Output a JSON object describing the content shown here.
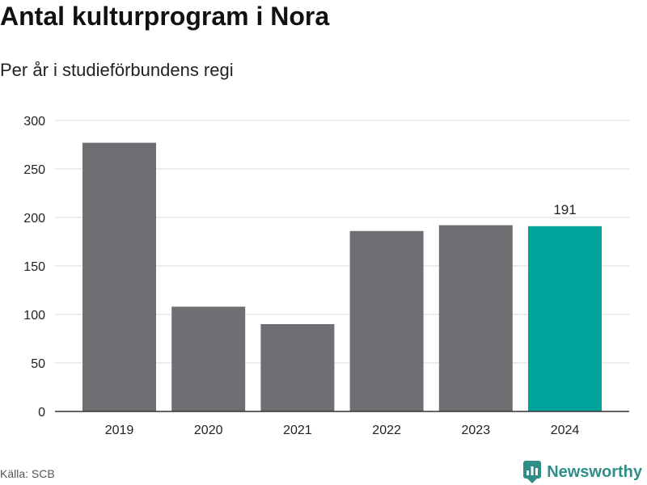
{
  "header": {
    "title": "Antal kulturprogram i Nora",
    "subtitle": "Per år i studieförbundens regi"
  },
  "footer": {
    "source": "Källa: SCB",
    "brand": "Newsworthy",
    "brand_icon": "newsworthy-chart-icon"
  },
  "colors": {
    "bar_default": "#6f6e73",
    "bar_highlight": "#00a39a",
    "grid": "#d9d9d9",
    "axis": "#333333",
    "text": "#222222",
    "brand": "#2f8f87"
  },
  "chart_data": {
    "type": "bar",
    "categories": [
      "2019",
      "2020",
      "2021",
      "2022",
      "2023",
      "2024"
    ],
    "values": [
      277,
      108,
      90,
      186,
      192,
      191
    ],
    "highlight_index": 5,
    "data_labels": [
      {
        "index": 5,
        "text": "191"
      }
    ],
    "y_ticks": [
      0,
      50,
      100,
      150,
      200,
      250,
      300
    ],
    "ylim": [
      0,
      300
    ],
    "grid": true,
    "legend": "none",
    "title": "Antal kulturprogram i Nora",
    "subtitle": "Per år i studieförbundens regi",
    "xlabel": "",
    "ylabel": ""
  }
}
